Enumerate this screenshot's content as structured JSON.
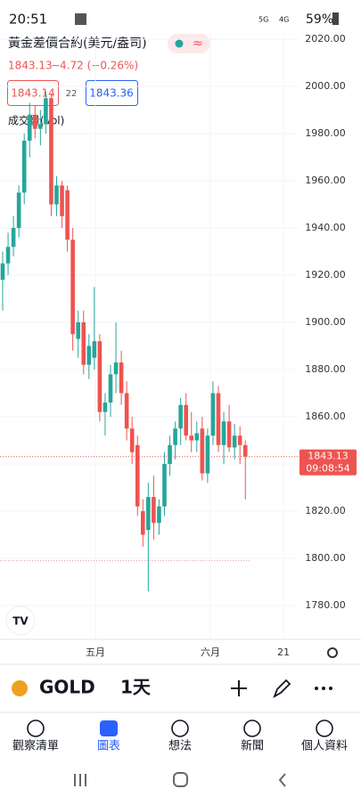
{
  "status_bar": {
    "time": "20:51",
    "signal": "5G",
    "signal2": "4G",
    "battery": "59%"
  },
  "header": {
    "title": "黃金差價合約(美元/盎司)",
    "change": "−4.72 (−0.26%)",
    "bid": "1843.14",
    "spread": "22",
    "ask": "1843.36",
    "indicator": "成交量(Vol)"
  },
  "chart_data": {
    "type": "candlestick",
    "ohlc": [
      [
        1918,
        1930,
        1905,
        1925
      ],
      [
        1925,
        1938,
        1920,
        1932
      ],
      [
        1932,
        1945,
        1928,
        1940
      ],
      [
        1940,
        1958,
        1936,
        1955
      ],
      [
        1955,
        1980,
        1950,
        1977
      ],
      [
        1977,
        1993,
        1970,
        1988
      ],
      [
        1988,
        1992,
        1978,
        1982
      ],
      [
        1982,
        1990,
        1975,
        1984
      ],
      [
        1984,
        1998,
        1980,
        1995
      ],
      [
        1995,
        1997,
        1945,
        1950
      ],
      [
        1950,
        1962,
        1945,
        1958
      ],
      [
        1958,
        1960,
        1940,
        1945
      ],
      [
        1956,
        1958,
        1930,
        1935
      ],
      [
        1935,
        1940,
        1888,
        1895
      ],
      [
        1893,
        1905,
        1885,
        1900
      ],
      [
        1900,
        1905,
        1878,
        1882
      ],
      [
        1882,
        1895,
        1876,
        1890
      ],
      [
        1885,
        1915,
        1880,
        1892
      ],
      [
        1892,
        1895,
        1858,
        1862
      ],
      [
        1862,
        1870,
        1852,
        1866
      ],
      [
        1866,
        1882,
        1860,
        1878
      ],
      [
        1878,
        1900,
        1870,
        1883
      ],
      [
        1883,
        1888,
        1865,
        1870
      ],
      [
        1870,
        1875,
        1850,
        1855
      ],
      [
        1855,
        1860,
        1840,
        1845
      ],
      [
        1848,
        1852,
        1818,
        1822
      ],
      [
        1820,
        1825,
        1805,
        1810
      ],
      [
        1812,
        1832,
        1786,
        1826
      ],
      [
        1826,
        1835,
        1808,
        1815
      ],
      [
        1815,
        1825,
        1810,
        1822
      ],
      [
        1822,
        1845,
        1818,
        1840
      ],
      [
        1840,
        1852,
        1835,
        1848
      ],
      [
        1848,
        1858,
        1842,
        1855
      ],
      [
        1855,
        1868,
        1848,
        1865
      ],
      [
        1865,
        1870,
        1850,
        1852
      ],
      [
        1852,
        1862,
        1845,
        1850
      ],
      [
        1850,
        1858,
        1845,
        1853
      ],
      [
        1855,
        1860,
        1833,
        1836
      ],
      [
        1836,
        1855,
        1832,
        1852
      ],
      [
        1852,
        1875,
        1848,
        1870
      ],
      [
        1870,
        1873,
        1845,
        1848
      ],
      [
        1848,
        1862,
        1840,
        1858
      ],
      [
        1858,
        1865,
        1845,
        1847
      ],
      [
        1847,
        1857,
        1842,
        1852
      ],
      [
        1852,
        1856,
        1840,
        1848
      ],
      [
        1848,
        1850,
        1825,
        1843.13
      ]
    ],
    "up_color": "#26a69a",
    "down_color": "#ef5350",
    "ylim": [
      1780,
      2020
    ],
    "yticks": [
      {
        "value": 1780,
        "label": "1780.00"
      },
      {
        "value": 1800,
        "label": "1800.00"
      },
      {
        "value": 1820,
        "label": "1820.00"
      },
      {
        "value": 1840,
        "label": "1840.00"
      },
      {
        "value": 1860,
        "label": "1860.00"
      },
      {
        "value": 1880,
        "label": "1880.00"
      },
      {
        "value": 1900,
        "label": "1900.00"
      },
      {
        "value": 1920,
        "label": "1920.00"
      },
      {
        "value": 1940,
        "label": "1940.00"
      },
      {
        "value": 1960,
        "label": "1960.00"
      },
      {
        "value": 1980,
        "label": "1980.00"
      },
      {
        "value": 2000,
        "label": "2000.00"
      },
      {
        "value": 2020,
        "label": "2020.00"
      }
    ],
    "x_labels": [
      "五月",
      "六月",
      "21"
    ],
    "last_price": 1843.13,
    "countdown": "09:08:54",
    "reference_line": 1799
  },
  "toolbar": {
    "symbol": "GOLD",
    "interval": "1天"
  },
  "nav": [
    "觀察清單",
    "圖表",
    "想法",
    "新聞",
    "個人資料"
  ]
}
